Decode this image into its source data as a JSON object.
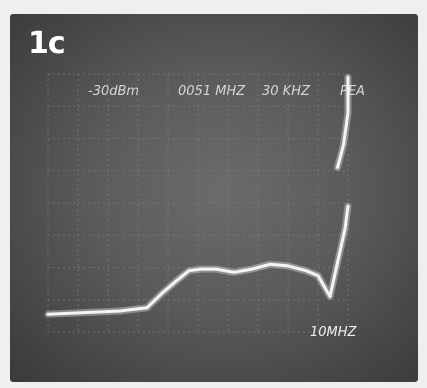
{
  "panel_label": "1c",
  "readouts": {
    "ref_level": "-30dBm",
    "center_freq": "0051 MHZ",
    "resolution_bw": "30 KHZ",
    "mode": "PEA"
  },
  "colors": {
    "trace": "#f4f4f4",
    "grid": "#8a8a8a",
    "screen": "#5a5a5a"
  },
  "chart_data": {
    "type": "line",
    "title": "",
    "xlabel": "",
    "ylabel": "",
    "tick_labels": [
      "10MHZ"
    ],
    "grid": true,
    "xlim": [
      0,
      10
    ],
    "ylim": [
      0,
      8
    ],
    "series": [
      {
        "values_x": [
          0,
          1.2,
          2.4,
          3.3,
          3.8,
          4.3,
          4.7,
          5.1,
          5.6,
          6.2,
          6.8,
          7.4,
          8.0,
          8.6,
          9.0,
          9.4,
          9.9,
          10.0
        ],
        "values_y": [
          0.55,
          0.6,
          0.65,
          0.75,
          1.2,
          1.6,
          1.9,
          1.95,
          1.95,
          1.85,
          1.95,
          2.1,
          2.05,
          1.9,
          1.75,
          1.1,
          3.2,
          3.9
        ]
      },
      {
        "values_x": [
          9.65,
          9.85,
          10.0,
          10.0
        ],
        "values_y": [
          5.1,
          5.8,
          6.8,
          7.9
        ]
      }
    ]
  }
}
